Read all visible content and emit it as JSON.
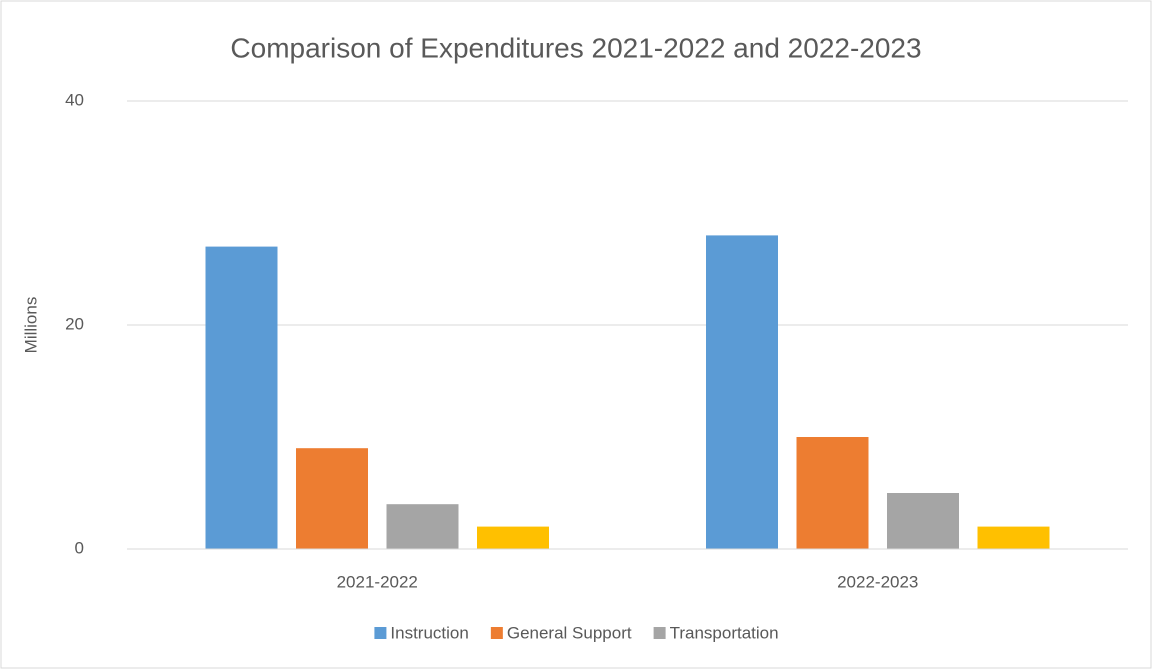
{
  "chart_data": {
    "type": "bar",
    "title": "Comparison of Expenditures 2021-2022 and 2022-2023",
    "y_label": "Millions",
    "categories": [
      "2021-2022",
      "2022-2023"
    ],
    "series": [
      {
        "name": "Instruction",
        "color": "#5b9bd5",
        "values": [
          27,
          28
        ]
      },
      {
        "name": "General Support",
        "color": "#ed7d31",
        "values": [
          9,
          10
        ]
      },
      {
        "name": "Transportation",
        "color": "#a5a5a5",
        "values": [
          4,
          5
        ]
      },
      {
        "color": "#ffc000",
        "values": [
          2,
          2
        ]
      }
    ],
    "ylim": [
      0,
      40
    ],
    "yticks": [
      0,
      20,
      40
    ],
    "grid": true,
    "legend": "bottom"
  }
}
